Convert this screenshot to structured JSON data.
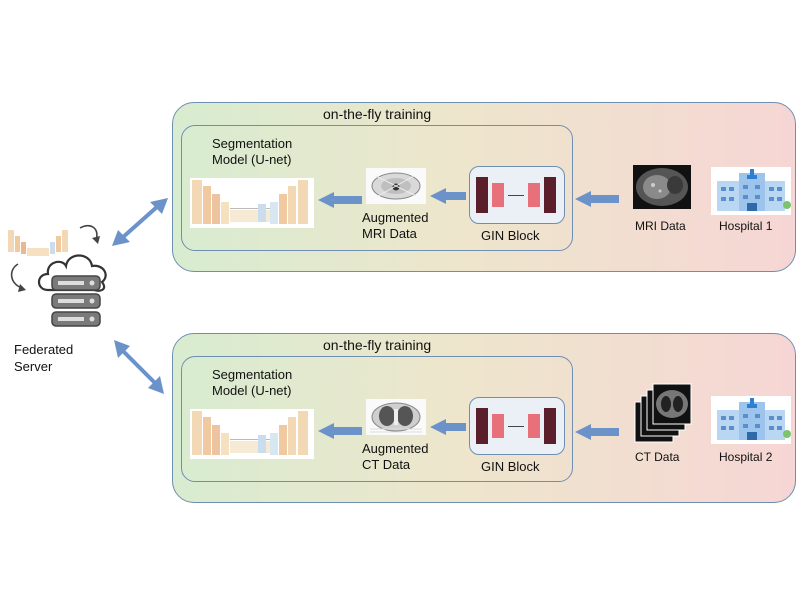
{
  "server": {
    "label_line1": "Federated",
    "label_line2": "Server"
  },
  "pipelines": [
    {
      "title": "on-the-fly training",
      "model_line1": "Segmentation",
      "model_line2": "Model (U-net)",
      "augmented_line1": "Augmented",
      "augmented_line2": "MRI Data",
      "block_label": "GIN Block",
      "data_label": "MRI Data",
      "hospital_label": "Hospital 1"
    },
    {
      "title": "on-the-fly training",
      "model_line1": "Segmentation",
      "model_line2": "Model (U-net)",
      "augmented_line1": "Augmented",
      "augmented_line2": "CT Data",
      "block_label": "GIN Block",
      "data_label": "CT Data",
      "hospital_label": "Hospital 2"
    }
  ],
  "colors": {
    "arrow": "#6b93c9",
    "gin_dark": "#5a1f2a",
    "gin_light": "#e8707a",
    "panel_border": "#6f8fb0"
  },
  "icons": [
    "cloud-icon",
    "server-rack-icon",
    "cycle-arrow-icon",
    "unet-icon",
    "hospital-icon",
    "mri-scan-icon",
    "ct-scan-icon"
  ]
}
